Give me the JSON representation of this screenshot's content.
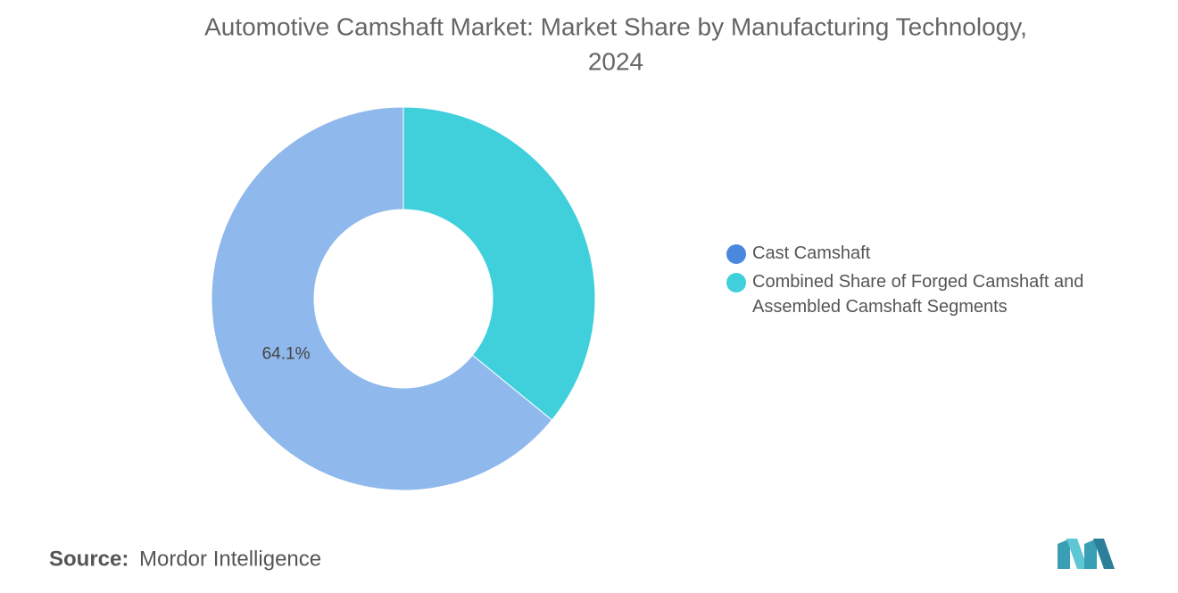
{
  "chart_data": {
    "type": "pie",
    "title": "Automotive Camshaft Market: Market Share by Manufacturing Technology, 2024",
    "categories": [
      "Cast Camshaft",
      "Combined Share of Forged Camshaft and Assembled Camshaft Segments"
    ],
    "values": [
      64.1,
      35.9
    ],
    "value_labels": [
      "64.1%",
      null
    ],
    "colors": [
      "#8fb8ec",
      "#40d0dc"
    ],
    "legend_colors": [
      "#4a88e0",
      "#40d0dc"
    ],
    "donut": true,
    "legend": "right"
  },
  "source": {
    "label": "Source:",
    "text": "Mordor Intelligence"
  }
}
